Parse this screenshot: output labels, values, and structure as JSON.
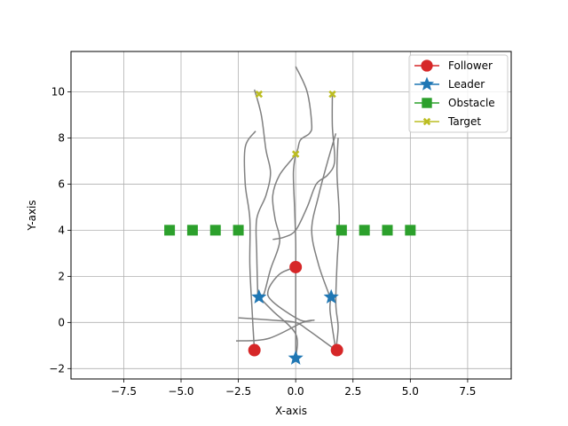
{
  "chart_data": {
    "type": "scatter",
    "title": "",
    "xlabel": "X-axis",
    "ylabel": "Y-axis",
    "xlim": [
      -9.8,
      9.4
    ],
    "ylim": [
      -2.45,
      11.75
    ],
    "xticks": [
      -7.5,
      -5.0,
      -2.5,
      0.0,
      2.5,
      5.0,
      7.5
    ],
    "xtick_labels": [
      "−7.5",
      "−5.0",
      "−2.5",
      "0.0",
      "2.5",
      "5.0",
      "7.5"
    ],
    "yticks": [
      -2,
      0,
      2,
      4,
      6,
      8,
      10
    ],
    "ytick_labels": [
      "−2",
      "0",
      "2",
      "4",
      "6",
      "8",
      "10"
    ],
    "grid": true,
    "legend_position": "top-right",
    "colors": {
      "follower": "#d62728",
      "leader": "#1f77b4",
      "obstacle": "#2ca02c",
      "target": "#bcbd22",
      "trajectory": "#808080",
      "grid": "#b0b0b0"
    },
    "legend": [
      {
        "key": "follower",
        "label": "Follower",
        "marker": "circle"
      },
      {
        "key": "leader",
        "label": "Leader",
        "marker": "star"
      },
      {
        "key": "obstacle",
        "label": "Obstacle",
        "marker": "square"
      },
      {
        "key": "target",
        "label": "Target",
        "marker": "x"
      }
    ],
    "series": [
      {
        "key": "follower",
        "marker": "circle",
        "points": [
          [
            0.0,
            2.4
          ],
          [
            -1.8,
            -1.2
          ],
          [
            1.8,
            -1.2
          ]
        ]
      },
      {
        "key": "leader",
        "marker": "star",
        "points": [
          [
            0.0,
            -1.55
          ],
          [
            -1.6,
            1.1
          ],
          [
            1.55,
            1.1
          ]
        ]
      },
      {
        "key": "obstacle",
        "marker": "square",
        "points": [
          [
            -5.5,
            4.0
          ],
          [
            -4.5,
            4.0
          ],
          [
            -3.5,
            4.0
          ],
          [
            -2.5,
            4.0
          ],
          [
            2.0,
            4.0
          ],
          [
            3.0,
            4.0
          ],
          [
            4.0,
            4.0
          ],
          [
            5.0,
            4.0
          ]
        ]
      },
      {
        "key": "target",
        "marker": "x",
        "points": [
          [
            -1.6,
            9.9
          ],
          [
            1.6,
            9.9
          ],
          [
            0.0,
            7.3
          ]
        ]
      }
    ],
    "trajectories": [
      [
        [
          -1.8,
          10.1
        ],
        [
          -1.5,
          9.0
        ],
        [
          -1.3,
          7.5
        ],
        [
          -1.1,
          6.5
        ],
        [
          -1.3,
          5.5
        ],
        [
          -1.7,
          4.5
        ],
        [
          -1.7,
          3.0
        ],
        [
          -1.65,
          1.1
        ]
      ],
      [
        [
          -1.75,
          8.3
        ],
        [
          -2.2,
          7.6
        ],
        [
          -2.2,
          6.0
        ],
        [
          -2.0,
          4.5
        ],
        [
          -2.0,
          2.5
        ],
        [
          -1.9,
          0.5
        ],
        [
          -1.8,
          -1.2
        ]
      ],
      [
        [
          0.0,
          11.1
        ],
        [
          0.5,
          10.0
        ],
        [
          0.7,
          8.6
        ],
        [
          0.6,
          8.2
        ],
        [
          0.2,
          7.9
        ],
        [
          0.0,
          7.3
        ],
        [
          -0.7,
          6.4
        ],
        [
          -1.0,
          5.5
        ],
        [
          -0.9,
          4.5
        ],
        [
          -0.7,
          3.5
        ],
        [
          -1.1,
          2.3
        ],
        [
          -1.4,
          1.2
        ],
        [
          -1.65,
          1.1
        ]
      ],
      [
        [
          0.0,
          7.3
        ],
        [
          -0.1,
          6.5
        ],
        [
          -0.05,
          5.0
        ],
        [
          0.0,
          3.5
        ],
        [
          0.0,
          2.4
        ]
      ],
      [
        [
          1.6,
          9.9
        ],
        [
          1.6,
          8.5
        ],
        [
          1.7,
          7.0
        ],
        [
          1.4,
          6.4
        ],
        [
          0.9,
          6.0
        ],
        [
          0.5,
          5.0
        ],
        [
          0.0,
          4.0
        ],
        [
          -0.5,
          3.7
        ],
        [
          -1.0,
          3.6
        ]
      ],
      [
        [
          1.75,
          8.2
        ],
        [
          1.4,
          7.0
        ],
        [
          1.0,
          5.5
        ],
        [
          0.7,
          4.0
        ],
        [
          1.0,
          2.5
        ],
        [
          1.5,
          1.1
        ]
      ],
      [
        [
          1.55,
          1.1
        ],
        [
          1.5,
          0.5
        ],
        [
          1.75,
          -1.2
        ]
      ],
      [
        [
          1.75,
          -1.2
        ],
        [
          1.85,
          -0.2
        ],
        [
          1.75,
          0.8
        ],
        [
          1.8,
          2.5
        ],
        [
          1.9,
          4.5
        ],
        [
          1.8,
          6.5
        ],
        [
          1.85,
          8.0
        ]
      ],
      [
        [
          0.0,
          2.4
        ],
        [
          -0.7,
          2.1
        ],
        [
          -1.2,
          1.4
        ],
        [
          -1.0,
          0.9
        ],
        [
          0.2,
          0.1
        ],
        [
          0.8,
          0.1
        ],
        [
          0.3,
          0.0
        ],
        [
          -1.2,
          -0.7
        ],
        [
          -2.6,
          -0.8
        ]
      ],
      [
        [
          -2.5,
          0.2
        ],
        [
          -1.0,
          0.1
        ],
        [
          0.0,
          0.0
        ],
        [
          0.5,
          -0.3
        ],
        [
          1.2,
          -0.8
        ],
        [
          1.75,
          -1.2
        ]
      ],
      [
        [
          -1.6,
          1.1
        ],
        [
          -1.0,
          0.5
        ],
        [
          0.0,
          -0.5
        ],
        [
          0.0,
          -1.55
        ]
      ],
      [
        [
          0.0,
          2.4
        ],
        [
          0.0,
          1.0
        ],
        [
          0.0,
          -0.3
        ],
        [
          0.0,
          -1.55
        ]
      ]
    ]
  }
}
